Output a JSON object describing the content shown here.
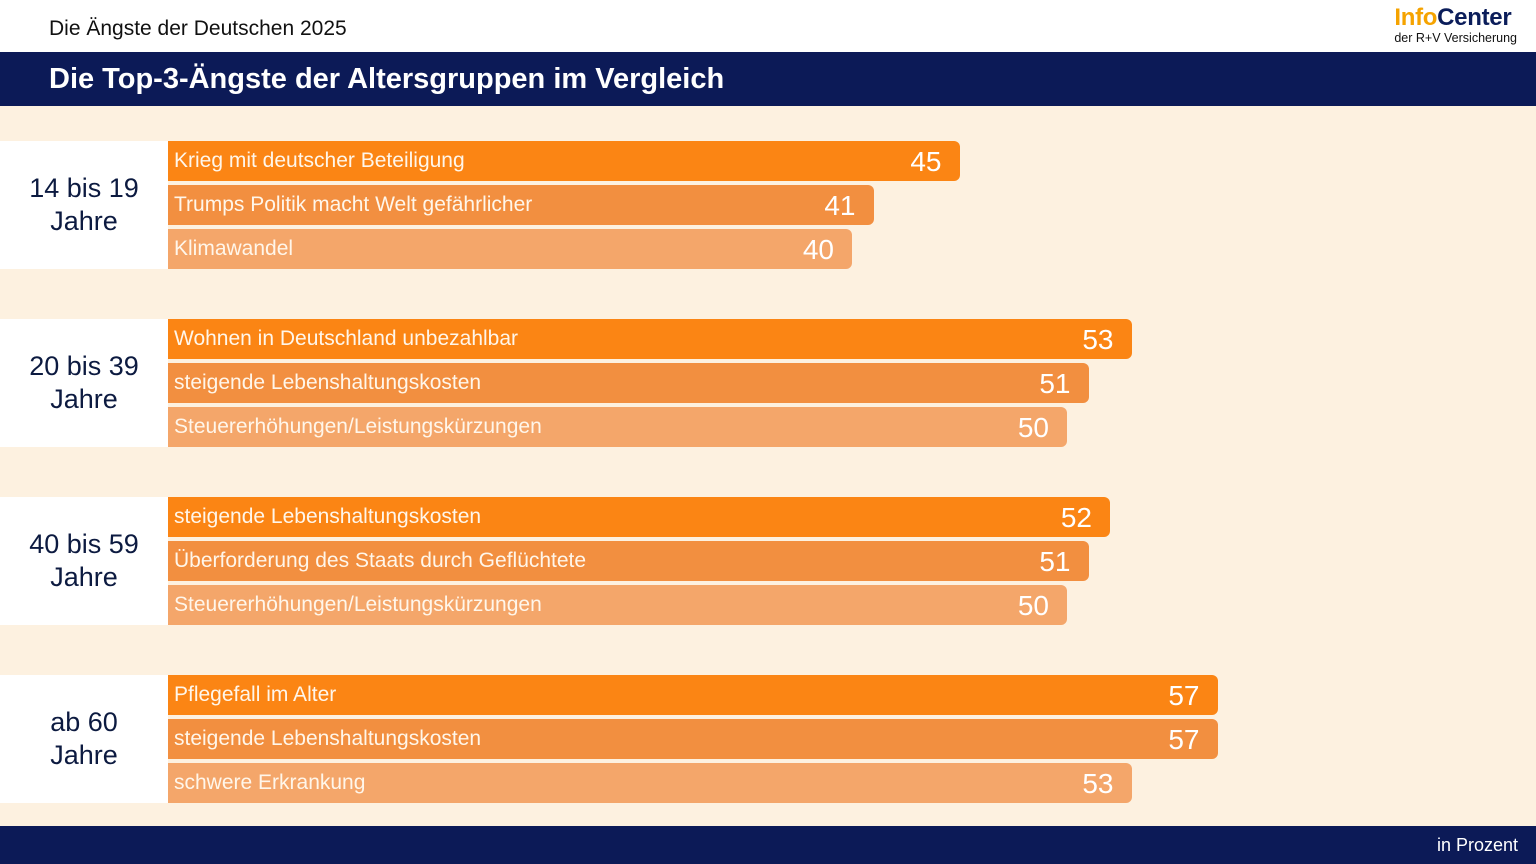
{
  "header": {
    "suptitle": "Die Ängste der Deutschen 2025",
    "logo_part1": "Info",
    "logo_part2": "Center",
    "logo_sub": "der R+V Versicherung"
  },
  "title": "Die Top-3-Ängste der Altersgruppen im Vergleich",
  "footer": {
    "unit": "in Prozent"
  },
  "colors": {
    "rank1": "#fb8514",
    "rank2": "#f28f40",
    "rank3": "#f4a66a",
    "navy": "#0c1a57",
    "background": "#fdf1e0"
  },
  "chart_data": {
    "type": "bar",
    "orientation": "horizontal",
    "title": "Die Top-3-Ängste der Altersgruppen im Vergleich",
    "unit": "in Prozent",
    "groups": [
      {
        "label_line1": "14 bis 19",
        "label_line2": "Jahre",
        "items": [
          {
            "label": "Krieg mit deutscher Beteiligung",
            "value": 45
          },
          {
            "label": "Trumps Politik macht Welt gefährlicher",
            "value": 41
          },
          {
            "label": "Klimawandel",
            "value": 40
          }
        ]
      },
      {
        "label_line1": "20 bis 39",
        "label_line2": "Jahre",
        "items": [
          {
            "label": "Wohnen in Deutschland unbezahlbar",
            "value": 53
          },
          {
            "label": "steigende Lebenshaltungskosten",
            "value": 51
          },
          {
            "label": "Steuererhöhungen/Leistungskürzungen",
            "value": 50
          }
        ]
      },
      {
        "label_line1": "40 bis 59",
        "label_line2": "Jahre",
        "items": [
          {
            "label": "steigende Lebenshaltungskosten",
            "value": 52
          },
          {
            "label": "Überforderung des Staats durch Geflüchtete",
            "value": 51
          },
          {
            "label": "Steuererhöhungen/Leistungskürzungen",
            "value": 50
          }
        ]
      },
      {
        "label_line1": "ab 60",
        "label_line2": "Jahre",
        "items": [
          {
            "label": "Pflegefall im Alter",
            "value": 57
          },
          {
            "label": "steigende Lebenshaltungskosten",
            "value": 57
          },
          {
            "label": "schwere Erkrankung",
            "value": 53
          }
        ]
      }
    ]
  }
}
